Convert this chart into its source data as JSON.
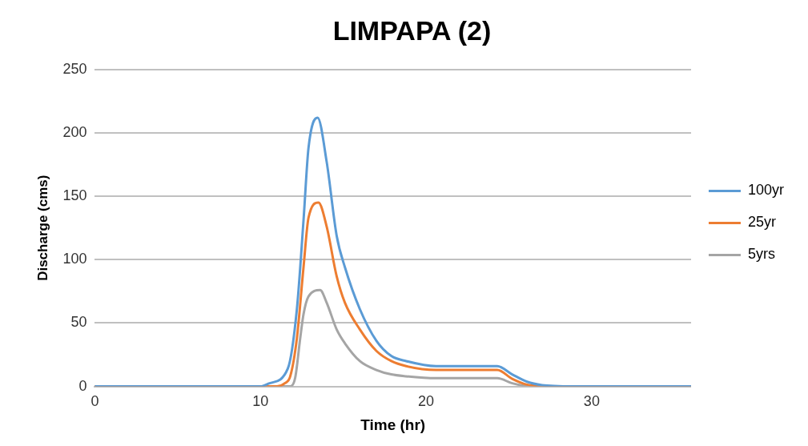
{
  "chart_data": {
    "type": "line",
    "title": "LIMPAPA (2)",
    "xlabel": "Time (hr)",
    "ylabel": "Discharge (cms)",
    "xlim": [
      0,
      36
    ],
    "xticks": [
      0,
      10,
      20,
      30
    ],
    "ylim": [
      0,
      250
    ],
    "yticks": [
      0,
      50,
      100,
      150,
      200,
      250
    ],
    "grid": "y",
    "legend": "right",
    "marker": "none",
    "line_style": "solid",
    "series": [
      {
        "name": "100yr",
        "color": "#5b9bd5",
        "x": [
          0,
          10,
          10.55,
          11.65,
          12.2,
          12.6,
          12.9,
          13.45,
          14.0,
          14.6,
          15.1,
          16.0,
          17.0,
          17.9,
          18.8,
          20.6,
          24.3,
          25.2,
          26.1,
          27,
          28,
          29,
          36
        ],
        "values": [
          0,
          0,
          2.5,
          14,
          61,
          131,
          188,
          212,
          177,
          119,
          94,
          61,
          36,
          24,
          20,
          16,
          16,
          9.5,
          3.7,
          1,
          0.3,
          0,
          0
        ]
      },
      {
        "name": "25yr",
        "color": "#ed7d31",
        "x": [
          0,
          11,
          11.47,
          11.8,
          12.2,
          12.6,
          12.9,
          13.5,
          14.0,
          14.6,
          15.1,
          16.0,
          17.0,
          17.9,
          18.8,
          20.6,
          24.3,
          25.2,
          26.1,
          27,
          28,
          36
        ],
        "values": [
          0,
          0,
          2.5,
          8,
          38,
          94,
          133,
          145,
          126,
          87,
          66,
          45,
          28,
          20,
          16,
          13,
          13,
          6,
          1.4,
          0.5,
          0,
          0
        ]
      },
      {
        "name": "5yrs",
        "color": "#a5a5a5",
        "x": [
          0,
          11.8,
          12.1,
          12.4,
          12.6,
          12.9,
          13.6,
          14.0,
          14.6,
          15.1,
          16.0,
          17.0,
          17.9,
          18.8,
          20.6,
          24.3,
          25.2,
          26.1,
          27,
          36
        ],
        "values": [
          0,
          0,
          7,
          38,
          57,
          71,
          76,
          66,
          45,
          34,
          20,
          13,
          9.5,
          8,
          6.5,
          6.5,
          2.5,
          0.3,
          0,
          0
        ]
      }
    ]
  }
}
